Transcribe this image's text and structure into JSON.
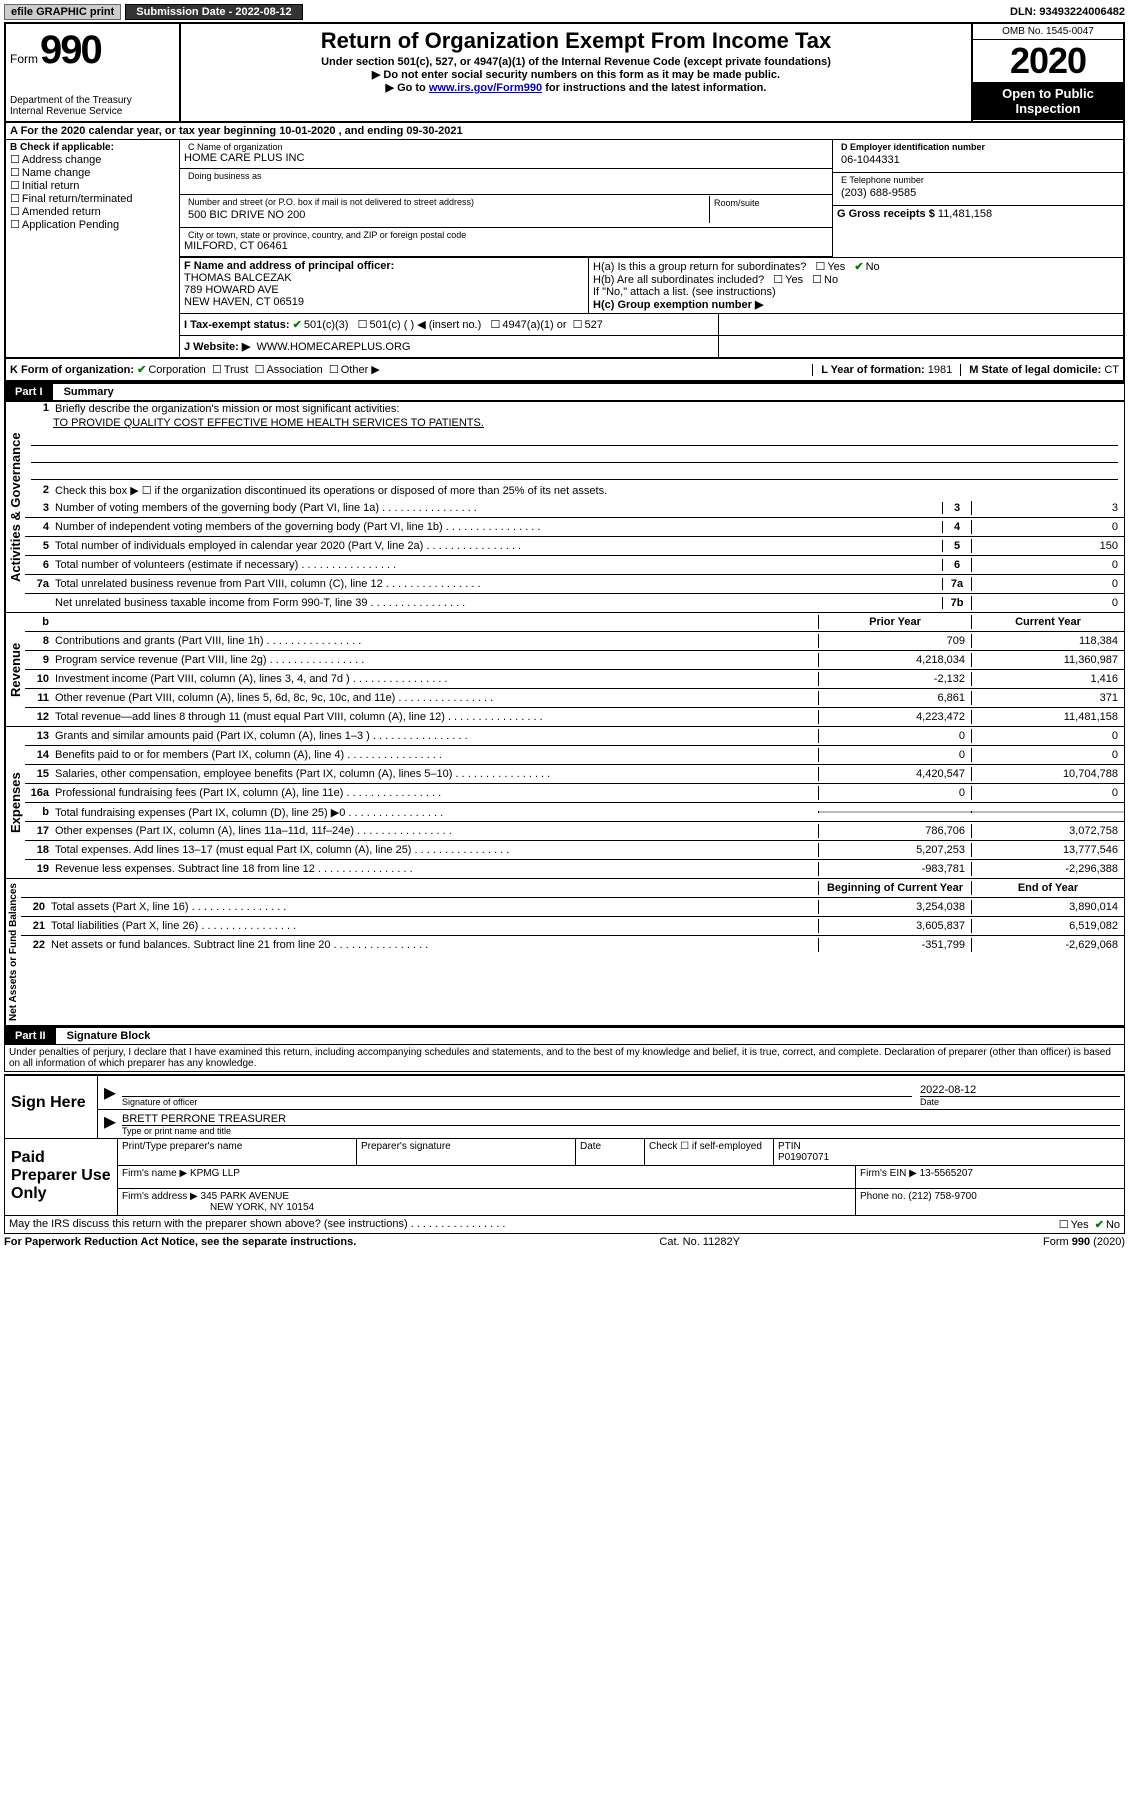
{
  "topbar": {
    "efile": "efile GRAPHIC print",
    "subdate_label": "Submission Date - ",
    "subdate": "2022-08-12",
    "dln_label": "DLN: ",
    "dln": "93493224006482"
  },
  "header": {
    "form_word": "Form",
    "form_num": "990",
    "dept": "Department of the Treasury\nInternal Revenue Service",
    "title": "Return of Organization Exempt From Income Tax",
    "subtitle": "Under section 501(c), 527, or 4947(a)(1) of the Internal Revenue Code (except private foundations)",
    "instr1": "▶ Do not enter social security numbers on this form as it may be made public.",
    "instr2_pre": "▶ Go to ",
    "instr2_link": "www.irs.gov/Form990",
    "instr2_post": " for instructions and the latest information.",
    "omb": "OMB No. 1545-0047",
    "year": "2020",
    "open_pub": "Open to Public Inspection"
  },
  "rowA": "A For the 2020 calendar year, or tax year beginning 10-01-2020    , and ending 09-30-2021",
  "colB": {
    "title": "B Check if applicable:",
    "opts": [
      "Address change",
      "Name change",
      "Initial return",
      "Final return/terminated",
      "Amended return",
      "Application Pending"
    ]
  },
  "colC": {
    "label": "C Name of organization",
    "name": "HOME CARE PLUS INC",
    "dba_label": "Doing business as",
    "addr_label": "Number and street (or P.O. box if mail is not delivered to street address)",
    "room_label": "Room/suite",
    "addr": "500 BIC DRIVE NO 200",
    "city_label": "City or town, state or province, country, and ZIP or foreign postal code",
    "city": "MILFORD, CT  06461"
  },
  "colD": {
    "label": "D Employer identification number",
    "val": "06-1044331"
  },
  "colE": {
    "label": "E Telephone number",
    "val": "(203) 688-9585"
  },
  "colG": {
    "label": "G Gross receipts $ ",
    "val": "11,481,158"
  },
  "colF": {
    "label": "F  Name and address of principal officer:",
    "name": "THOMAS BALCEZAK",
    "addr1": "789 HOWARD AVE",
    "addr2": "NEW HAVEN, CT  06519"
  },
  "colH": {
    "a": "H(a)  Is this a group return for subordinates?",
    "b": "H(b)  Are all subordinates included?",
    "b2": "If \"No,\" attach a list. (see instructions)",
    "c_label": "H(c)  Group exemption number ▶",
    "yes": "Yes",
    "no": "No"
  },
  "rowI": {
    "label": "I    Tax-exempt status:",
    "opt1": "501(c)(3)",
    "opt2": "501(c) (   ) ◀ (insert no.)",
    "opt3": "4947(a)(1) or",
    "opt4": "527"
  },
  "rowJ": {
    "label": "J   Website: ▶",
    "val": "WWW.HOMECAREPLUS.ORG"
  },
  "rowK": {
    "label": "K Form of organization:",
    "opts": [
      "Corporation",
      "Trust",
      "Association",
      "Other ▶"
    ],
    "L": "L Year of formation: ",
    "Lval": "1981",
    "M": "M State of legal domicile: ",
    "Mval": "CT"
  },
  "part1": {
    "hdr": "Part I",
    "title": "Summary",
    "q1": "Briefly describe the organization's mission or most significant activities:",
    "q1a": "TO PROVIDE QUALITY COST EFFECTIVE HOME HEALTH SERVICES TO PATIENTS.",
    "q2": "Check this box ▶ ☐  if the organization discontinued its operations or disposed of more than 25% of its net assets.",
    "lines_ag": [
      {
        "n": "3",
        "t": "Number of voting members of the governing body (Part VI, line 1a)",
        "k": "3",
        "v": "3"
      },
      {
        "n": "4",
        "t": "Number of independent voting members of the governing body (Part VI, line 1b)",
        "k": "4",
        "v": "0"
      },
      {
        "n": "5",
        "t": "Total number of individuals employed in calendar year 2020 (Part V, line 2a)",
        "k": "5",
        "v": "150"
      },
      {
        "n": "6",
        "t": "Total number of volunteers (estimate if necessary)",
        "k": "6",
        "v": "0"
      },
      {
        "n": "7a",
        "t": "Total unrelated business revenue from Part VIII, column (C), line 12",
        "k": "7a",
        "v": "0"
      },
      {
        "n": "",
        "t": "Net unrelated business taxable income from Form 990-T, line 39",
        "k": "7b",
        "v": "0"
      }
    ],
    "hdr_prior": "Prior Year",
    "hdr_curr": "Current Year",
    "rev": [
      {
        "n": "8",
        "t": "Contributions and grants (Part VIII, line 1h)",
        "p": "709",
        "c": "118,384"
      },
      {
        "n": "9",
        "t": "Program service revenue (Part VIII, line 2g)",
        "p": "4,218,034",
        "c": "11,360,987"
      },
      {
        "n": "10",
        "t": "Investment income (Part VIII, column (A), lines 3, 4, and 7d )",
        "p": "-2,132",
        "c": "1,416"
      },
      {
        "n": "11",
        "t": "Other revenue (Part VIII, column (A), lines 5, 6d, 8c, 9c, 10c, and 11e)",
        "p": "6,861",
        "c": "371"
      },
      {
        "n": "12",
        "t": "Total revenue—add lines 8 through 11 (must equal Part VIII, column (A), line 12)",
        "p": "4,223,472",
        "c": "11,481,158"
      }
    ],
    "exp": [
      {
        "n": "13",
        "t": "Grants and similar amounts paid (Part IX, column (A), lines 1–3 )",
        "p": "0",
        "c": "0"
      },
      {
        "n": "14",
        "t": "Benefits paid to or for members (Part IX, column (A), line 4)",
        "p": "0",
        "c": "0"
      },
      {
        "n": "15",
        "t": "Salaries, other compensation, employee benefits (Part IX, column (A), lines 5–10)",
        "p": "4,420,547",
        "c": "10,704,788"
      },
      {
        "n": "16a",
        "t": "Professional fundraising fees (Part IX, column (A), line 11e)",
        "p": "0",
        "c": "0"
      },
      {
        "n": "b",
        "t": "Total fundraising expenses (Part IX, column (D), line 25) ▶0",
        "p": "gray",
        "c": "gray"
      },
      {
        "n": "17",
        "t": "Other expenses (Part IX, column (A), lines 11a–11d, 11f–24e)",
        "p": "786,706",
        "c": "3,072,758"
      },
      {
        "n": "18",
        "t": "Total expenses. Add lines 13–17 (must equal Part IX, column (A), line 25)",
        "p": "5,207,253",
        "c": "13,777,546"
      },
      {
        "n": "19",
        "t": "Revenue less expenses. Subtract line 18 from line 12",
        "p": "-983,781",
        "c": "-2,296,388"
      }
    ],
    "hdr_boy": "Beginning of Current Year",
    "hdr_eoy": "End of Year",
    "na": [
      {
        "n": "20",
        "t": "Total assets (Part X, line 16)",
        "p": "3,254,038",
        "c": "3,890,014"
      },
      {
        "n": "21",
        "t": "Total liabilities (Part X, line 26)",
        "p": "3,605,837",
        "c": "6,519,082"
      },
      {
        "n": "22",
        "t": "Net assets or fund balances. Subtract line 21 from line 20",
        "p": "-351,799",
        "c": "-2,629,068"
      }
    ],
    "vlab_ag": "Activities & Governance",
    "vlab_rev": "Revenue",
    "vlab_exp": "Expenses",
    "vlab_na": "Net Assets or Fund Balances"
  },
  "part2": {
    "hdr": "Part II",
    "title": "Signature Block",
    "decl": "Under penalties of perjury, I declare that I have examined this return, including accompanying schedules and statements, and to the best of my knowledge and belief, it is true, correct, and complete. Declaration of preparer (other than officer) is based on all information of which preparer has any knowledge.",
    "sign_here": "Sign Here",
    "sig_officer": "Signature of officer",
    "date_label": "Date",
    "date_val": "2022-08-12",
    "name_title": "BRETT PERRONE  TREASURER",
    "name_title_label": "Type or print name and title",
    "paid": "Paid Preparer Use Only",
    "p_name_label": "Print/Type preparer's name",
    "p_sig_label": "Preparer's signature",
    "p_date_label": "Date",
    "p_check": "Check ☐ if self-employed",
    "ptin_label": "PTIN",
    "ptin": "P01907071",
    "firm_name_label": "Firm's name    ▶",
    "firm_name": "KPMG LLP",
    "firm_ein_label": "Firm's EIN ▶",
    "firm_ein": "13-5565207",
    "firm_addr_label": "Firm's address ▶",
    "firm_addr1": "345 PARK AVENUE",
    "firm_addr2": "NEW YORK, NY  10154",
    "phone_label": "Phone no. ",
    "phone": "(212) 758-9700",
    "discuss": "May the IRS discuss this return with the preparer shown above? (see instructions)"
  },
  "footer": {
    "pra": "For Paperwork Reduction Act Notice, see the separate instructions.",
    "cat": "Cat. No. 11282Y",
    "form": "Form 990 (2020)"
  }
}
